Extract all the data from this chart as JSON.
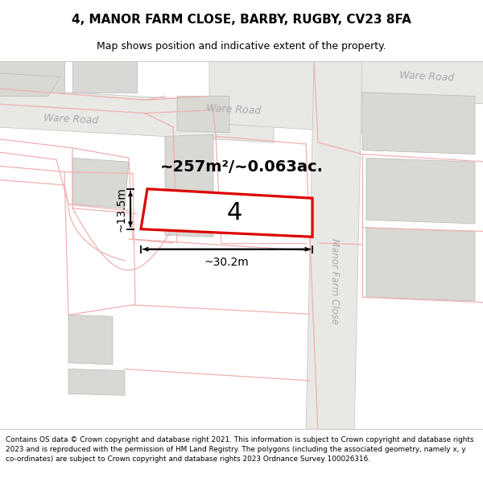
{
  "title": "4, MANOR FARM CLOSE, BARBY, RUGBY, CV23 8FA",
  "subtitle": "Map shows position and indicative extent of the property.",
  "footer_line1": "Contains OS data © Crown copyright and database right 2021. This information is subject to Crown copyright and database rights",
  "footer_line2": "2023 and is reproduced with the permission of HM Land Registry. The polygons (including the associated geometry, namely x, y",
  "footer_line3": "co-ordinates) are subject to Crown copyright and database rights 2023 Ordnance Survey 100026316.",
  "map_bg": "#fafafa",
  "road_fc": "#e8e8e5",
  "road_ec": "#c0c0bc",
  "bldg_fc": "#d8d8d4",
  "bldg_ec": "#b8b8b4",
  "pink": "#f0b0b0",
  "pink_lw": 0.9,
  "road_label_color": "#aaaaaa",
  "plot_ec": "#dd0000",
  "plot_fc": "#ffffff",
  "plot_label": "4",
  "area_label": "~257m²/~0.063ac.",
  "dim_w": "~30.2m",
  "dim_h": "~13.5m",
  "title_fontsize": 11,
  "subtitle_fontsize": 9,
  "footer_fontsize": 6.4,
  "area_fontsize": 14,
  "dim_fontsize": 10,
  "plot_num_fontsize": 22,
  "road_fontsize": 9
}
